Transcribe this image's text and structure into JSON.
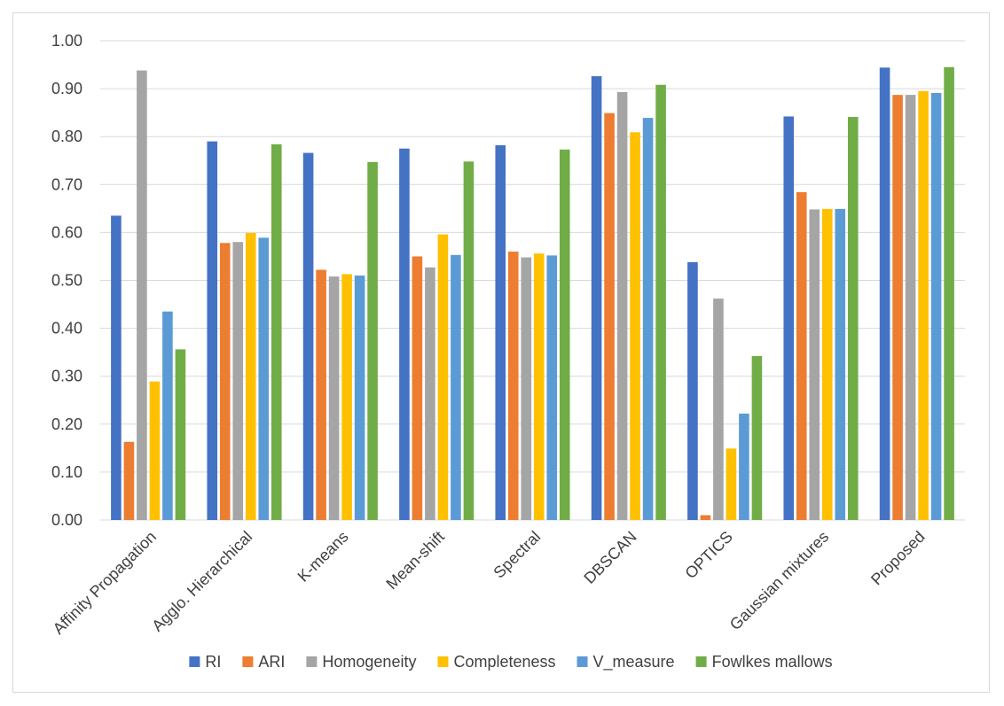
{
  "chart_data": {
    "type": "bar",
    "title": "",
    "xlabel": "",
    "ylabel": "",
    "ylim": [
      0,
      1.0
    ],
    "ytick_step": 0.1,
    "ytick_labels": [
      "0.00",
      "0.10",
      "0.20",
      "0.30",
      "0.40",
      "0.50",
      "0.60",
      "0.70",
      "0.80",
      "0.90",
      "1.00"
    ],
    "grid": true,
    "legend_position": "bottom",
    "categories": [
      "Affinity Propagation",
      "Agglo. Hierarchical",
      "K-means",
      "Mean-shift",
      "Spectral",
      "DBSCAN",
      "OPTICS",
      "Gaussian mixtures",
      "Proposed"
    ],
    "series": [
      {
        "name": "RI",
        "color": "#4472c4",
        "values": [
          0.635,
          0.79,
          0.766,
          0.775,
          0.782,
          0.926,
          0.538,
          0.842,
          0.944
        ]
      },
      {
        "name": "ARI",
        "color": "#ed7d31",
        "values": [
          0.163,
          0.578,
          0.522,
          0.55,
          0.56,
          0.849,
          0.01,
          0.684,
          0.887
        ]
      },
      {
        "name": "Homogeneity",
        "color": "#a5a5a5",
        "values": [
          0.938,
          0.58,
          0.508,
          0.527,
          0.548,
          0.893,
          0.462,
          0.648,
          0.887
        ]
      },
      {
        "name": "Completeness",
        "color": "#ffc000",
        "values": [
          0.289,
          0.599,
          0.513,
          0.596,
          0.556,
          0.809,
          0.149,
          0.649,
          0.895
        ]
      },
      {
        "name": "V_measure",
        "color": "#5b9bd5",
        "values": [
          0.435,
          0.589,
          0.51,
          0.553,
          0.552,
          0.839,
          0.222,
          0.649,
          0.891
        ]
      },
      {
        "name": "Fowlkes mallows",
        "color": "#70ad47",
        "values": [
          0.356,
          0.784,
          0.747,
          0.748,
          0.773,
          0.908,
          0.342,
          0.841,
          0.945
        ]
      }
    ]
  }
}
